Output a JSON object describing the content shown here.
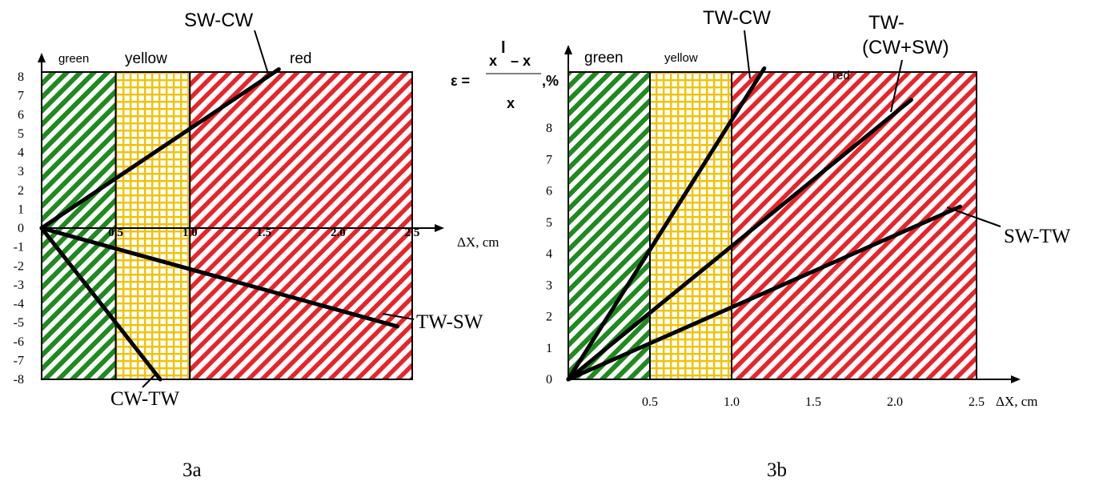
{
  "chart_data": [
    {
      "id": "3a",
      "type": "line",
      "caption": "3a",
      "xlabel": "ΔX, cm",
      "ylabel": "",
      "xlim": [
        0,
        2.5
      ],
      "ylim": [
        -8,
        8.5
      ],
      "x_ticks": [
        "0.5",
        "1.0",
        "1.5",
        "2.0",
        "2.5"
      ],
      "y_ticks": [
        "8",
        "7",
        "6",
        "5",
        "4",
        "3",
        "2",
        "1",
        "0",
        "-1",
        "-2",
        "-3",
        "-4",
        "-5",
        "-6",
        "-7",
        "-8"
      ],
      "zones": [
        {
          "name": "green",
          "from": 0,
          "to": 0.5,
          "color": "#1f8a1f",
          "pattern": "diagonal"
        },
        {
          "name": "yellow",
          "from": 0.5,
          "to": 1.0,
          "color": "#f2c200",
          "pattern": "grid"
        },
        {
          "name": "red",
          "from": 1.0,
          "to": 2.5,
          "color": "#e8242b",
          "pattern": "diagonal"
        }
      ],
      "series": [
        {
          "name": "SW-CW",
          "x": [
            0,
            1.6
          ],
          "y": [
            0,
            8.4
          ]
        },
        {
          "name": "TW-SW",
          "x": [
            0,
            2.4
          ],
          "y": [
            0,
            -5.2
          ]
        },
        {
          "name": "CW-TW",
          "x": [
            0,
            0.8
          ],
          "y": [
            0,
            -8
          ]
        }
      ]
    },
    {
      "id": "3b",
      "type": "line",
      "caption": "3b",
      "xlabel": "ΔX, cm",
      "ylabel_formula": {
        "eps": "ε =",
        "numerator": "x",
        "sup": "l",
        "minus": "– x",
        "denominator": "x",
        "unit": ",%"
      },
      "xlim": [
        0,
        2.5
      ],
      "ylim": [
        0,
        10
      ],
      "x_ticks": [
        "0.5",
        "1.0",
        "1.5",
        "2.0",
        "2.5"
      ],
      "y_ticks": [
        "0",
        "1",
        "2",
        "3",
        "4",
        "5",
        "6",
        "7",
        "8"
      ],
      "zones": [
        {
          "name": "green",
          "from": 0,
          "to": 0.5,
          "color": "#1f8a1f",
          "pattern": "diagonal"
        },
        {
          "name": "yellow",
          "from": 0.5,
          "to": 1.0,
          "color": "#f2c200",
          "pattern": "grid"
        },
        {
          "name": "red",
          "from": 1.0,
          "to": 2.5,
          "color": "#e8242b",
          "pattern": "diagonal"
        }
      ],
      "series": [
        {
          "name": "TW-CW",
          "x": [
            0,
            1.2
          ],
          "y": [
            0,
            9.9
          ]
        },
        {
          "name": "TW-\n(CW+SW)",
          "name_line1": "TW-",
          "name_line2": "(CW+SW)",
          "x": [
            0,
            2.1
          ],
          "y": [
            0,
            8.9
          ]
        },
        {
          "name": "SW-TW",
          "x": [
            0,
            2.4
          ],
          "y": [
            0,
            5.5
          ]
        }
      ]
    }
  ]
}
